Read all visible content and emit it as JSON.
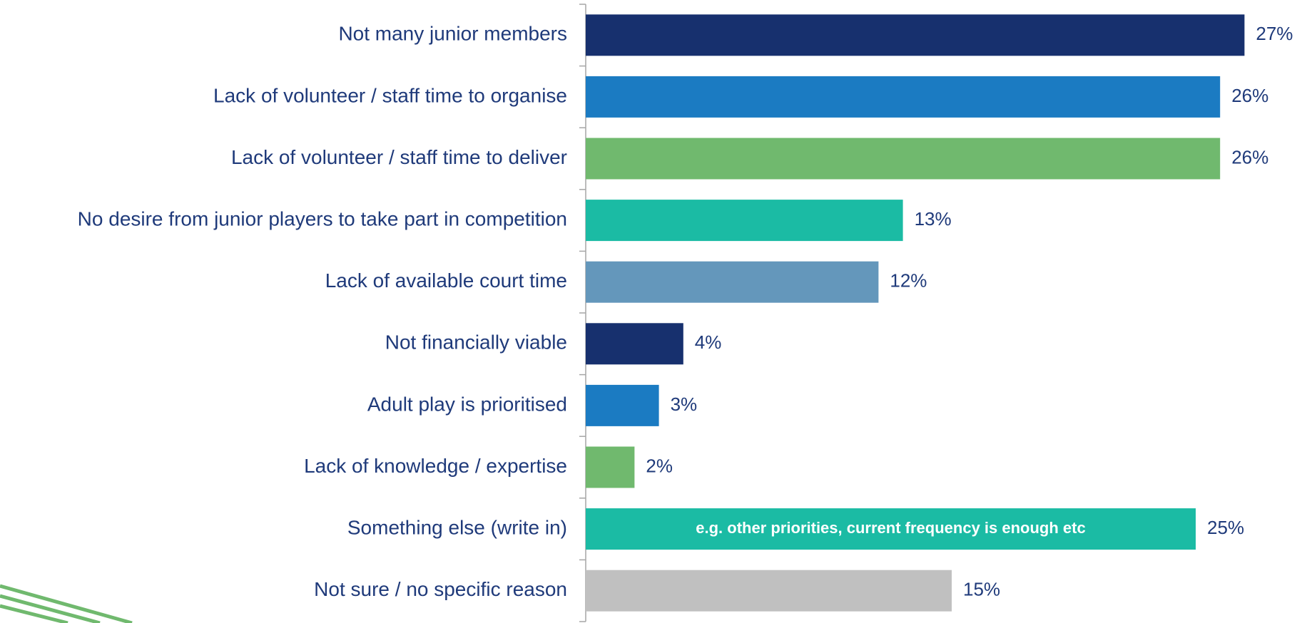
{
  "chart_data": {
    "type": "bar",
    "orientation": "horizontal",
    "categories": [
      "Not many junior members",
      "Lack of volunteer / staff time to organise",
      "Lack of volunteer / staff time to deliver",
      "No desire from junior players to take part in competition",
      "Lack of available court time",
      "Not financially viable",
      "Adult play  is prioritised",
      "Lack of knowledge / expertise",
      "Something else (write in)",
      "Not sure / no specific reason"
    ],
    "values": [
      27,
      26,
      26,
      13,
      12,
      4,
      3,
      2,
      25,
      15
    ],
    "value_labels": [
      "27%",
      "26%",
      "26%",
      "13%",
      "12%",
      "4%",
      "3%",
      "2%",
      "25%",
      "15%"
    ],
    "colors": [
      "#17306e",
      "#1b7bc2",
      "#70b96e",
      "#1bbba4",
      "#6497bb",
      "#17306e",
      "#1b7bc2",
      "#70b96e",
      "#1bbba4",
      "#c0c0c0"
    ],
    "annotation": "e.g. other priorities, current frequency is enough etc"
  }
}
